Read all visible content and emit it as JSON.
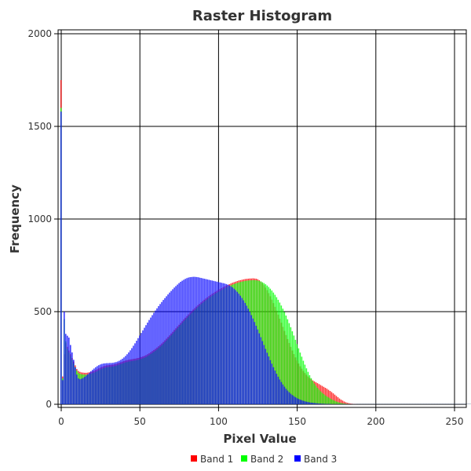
{
  "chart_data": {
    "type": "bar",
    "title": "Raster Histogram",
    "xlabel": "Pixel Value",
    "ylabel": "Frequency",
    "xlim": [
      0,
      255
    ],
    "ylim": [
      0,
      2000
    ],
    "xticks": [
      0,
      50,
      100,
      150,
      200,
      250
    ],
    "yticks": [
      0,
      500,
      1000,
      1500,
      2000
    ],
    "grid": true,
    "legend_position": "bottom",
    "series": [
      {
        "name": "Band 1",
        "color": "#ff0000",
        "values": [
          1750,
          150,
          270,
          330,
          310,
          290,
          270,
          250,
          230,
          210,
          190,
          180,
          175,
          172,
          171,
          170,
          170,
          171,
          173,
          175,
          178,
          181,
          185,
          189,
          194,
          198,
          202,
          205,
          208,
          210,
          211,
          212,
          213,
          214,
          216,
          218,
          221,
          224,
          227,
          230,
          233,
          236,
          238,
          240,
          242,
          243,
          245,
          246,
          248,
          250,
          252,
          255,
          258,
          261,
          265,
          270,
          275,
          281,
          287,
          293,
          299,
          306,
          313,
          320,
          328,
          336,
          345,
          354,
          363,
          372,
          382,
          391,
          401,
          410,
          420,
          429,
          439,
          448,
          458,
          467,
          476,
          485,
          494,
          502,
          511,
          519,
          527,
          535,
          542,
          550,
          557,
          564,
          571,
          577,
          584,
          590,
          596,
          601,
          607,
          612,
          617,
          622,
          627,
          631,
          636,
          640,
          644,
          648,
          652,
          656,
          659,
          662,
          665,
          668,
          670,
          672,
          674,
          676,
          677,
          678,
          679,
          679,
          680,
          679,
          678,
          675,
          670,
          663,
          654,
          643,
          630,
          616,
          600,
          583,
          565,
          546,
          526,
          505,
          484,
          462,
          440,
          418,
          396,
          374,
          352,
          331,
          310,
          290,
          271,
          253,
          236,
          220,
          205,
          192,
          180,
          169,
          159,
          150,
          142,
          135,
          129,
          124,
          119,
          114,
          109,
          104,
          99,
          94,
          89,
          84,
          78,
          72,
          66,
          59,
          52,
          45,
          38,
          31,
          25,
          20,
          15,
          11,
          8,
          6,
          4,
          3,
          2,
          2,
          1,
          1,
          1,
          1,
          1,
          1,
          1,
          1,
          1,
          1,
          1,
          1,
          1,
          1,
          1,
          1,
          1,
          1,
          1,
          1,
          1,
          1,
          1,
          1,
          1,
          1,
          1,
          1,
          1,
          1,
          1,
          1,
          1,
          1,
          1,
          1,
          1,
          1,
          1,
          1,
          1,
          1,
          1,
          1,
          1,
          1,
          1,
          1,
          1,
          1,
          1,
          1,
          1,
          1,
          1,
          1,
          1,
          1,
          1,
          1,
          1,
          1,
          1,
          1,
          1,
          1,
          1,
          1,
          1,
          1,
          1,
          1,
          1,
          1
        ]
      },
      {
        "name": "Band 2",
        "color": "#00ff00",
        "values": [
          1600,
          140,
          460,
          340,
          300,
          280,
          260,
          240,
          220,
          200,
          182,
          170,
          165,
          162,
          161,
          160,
          160,
          161,
          163,
          165,
          168,
          171,
          175,
          179,
          184,
          188,
          192,
          195,
          198,
          200,
          201,
          202,
          203,
          204,
          206,
          208,
          211,
          214,
          217,
          220,
          223,
          226,
          228,
          230,
          232,
          233,
          235,
          236,
          238,
          240,
          242,
          245,
          248,
          251,
          255,
          260,
          265,
          271,
          277,
          283,
          289,
          296,
          303,
          310,
          318,
          326,
          335,
          344,
          353,
          362,
          372,
          381,
          391,
          400,
          410,
          419,
          429,
          438,
          448,
          457,
          466,
          475,
          484,
          492,
          501,
          509,
          517,
          525,
          532,
          540,
          547,
          554,
          561,
          567,
          574,
          580,
          586,
          591,
          597,
          602,
          607,
          612,
          617,
          621,
          626,
          630,
          634,
          638,
          642,
          646,
          649,
          652,
          655,
          658,
          660,
          662,
          664,
          666,
          667,
          668,
          669,
          669,
          670,
          670,
          669,
          668,
          666,
          663,
          659,
          654,
          648,
          641,
          633,
          624,
          614,
          603,
          591,
          578,
          564,
          549,
          533,
          516,
          498,
          479,
          459,
          438,
          416,
          394,
          371,
          348,
          325,
          302,
          279,
          257,
          235,
          214,
          194,
          175,
          157,
          141,
          126,
          112,
          100,
          89,
          79,
          70,
          62,
          55,
          48,
          42,
          37,
          32,
          27,
          23,
          19,
          15,
          12,
          9,
          7,
          5,
          4,
          3,
          2,
          2,
          1,
          1,
          1,
          1,
          1,
          1,
          1,
          1,
          1,
          1,
          1,
          1,
          1,
          1,
          1,
          1,
          1,
          1,
          1,
          1,
          1,
          1,
          1,
          1,
          1,
          1,
          1,
          1,
          1,
          1,
          1,
          1,
          1,
          1,
          1,
          1,
          1,
          1,
          1,
          1,
          1,
          1,
          1,
          1,
          1,
          1,
          1,
          1,
          1,
          1,
          1,
          1,
          1,
          1,
          1,
          1,
          1,
          1,
          1,
          1,
          1,
          1,
          1,
          1,
          1,
          1,
          1,
          1,
          1,
          1,
          1,
          1,
          1,
          1,
          1,
          1,
          1,
          1
        ]
      },
      {
        "name": "Band 3",
        "color": "#0000ff",
        "values": [
          1580,
          130,
          500,
          380,
          370,
          360,
          320,
          280,
          240,
          200,
          160,
          140,
          135,
          138,
          142,
          148,
          155,
          162,
          170,
          178,
          186,
          193,
          200,
          206,
          211,
          215,
          218,
          220,
          221,
          222,
          222,
          223,
          223,
          224,
          226,
          228,
          231,
          235,
          240,
          246,
          253,
          261,
          270,
          280,
          291,
          303,
          316,
          329,
          343,
          357,
          371,
          385,
          399,
          413,
          427,
          441,
          455,
          468,
          481,
          494,
          506,
          518,
          530,
          541,
          552,
          563,
          573,
          583,
          593,
          603,
          612,
          621,
          630,
          638,
          646,
          654,
          661,
          667,
          672,
          677,
          681,
          684,
          686,
          687,
          688,
          688,
          687,
          686,
          684,
          682,
          680,
          678,
          676,
          674,
          672,
          670,
          668,
          666,
          664,
          662,
          660,
          658,
          656,
          654,
          652,
          649,
          646,
          642,
          637,
          631,
          624,
          616,
          607,
          597,
          586,
          574,
          561,
          547,
          532,
          516,
          499,
          481,
          463,
          444,
          424,
          404,
          383,
          362,
          341,
          320,
          299,
          278,
          258,
          238,
          219,
          200,
          182,
          165,
          149,
          134,
          120,
          107,
          95,
          84,
          74,
          65,
          57,
          50,
          44,
          38,
          33,
          29,
          25,
          22,
          19,
          16,
          14,
          12,
          10,
          9,
          8,
          7,
          6,
          5,
          4,
          4,
          3,
          3,
          2,
          2,
          2,
          2,
          1,
          1,
          1,
          1,
          1,
          1,
          1,
          1,
          1,
          1,
          1,
          1,
          1,
          1,
          1,
          1,
          1,
          1,
          1,
          1,
          1,
          1,
          1,
          1,
          1,
          1,
          1,
          1,
          1,
          1,
          1,
          1,
          1,
          1,
          1,
          1,
          1,
          1,
          1,
          1,
          1,
          1,
          1,
          1,
          1,
          1,
          1,
          1,
          1,
          1,
          1,
          1,
          1,
          1,
          1,
          1,
          1,
          1,
          1,
          1,
          1,
          1,
          1,
          1,
          1,
          1,
          1,
          1,
          1,
          1,
          1,
          1,
          1,
          1,
          1,
          1,
          1,
          1,
          1,
          1,
          1,
          1,
          1,
          1,
          1,
          1,
          1,
          1,
          1,
          1,
          1,
          1
        ]
      }
    ]
  }
}
